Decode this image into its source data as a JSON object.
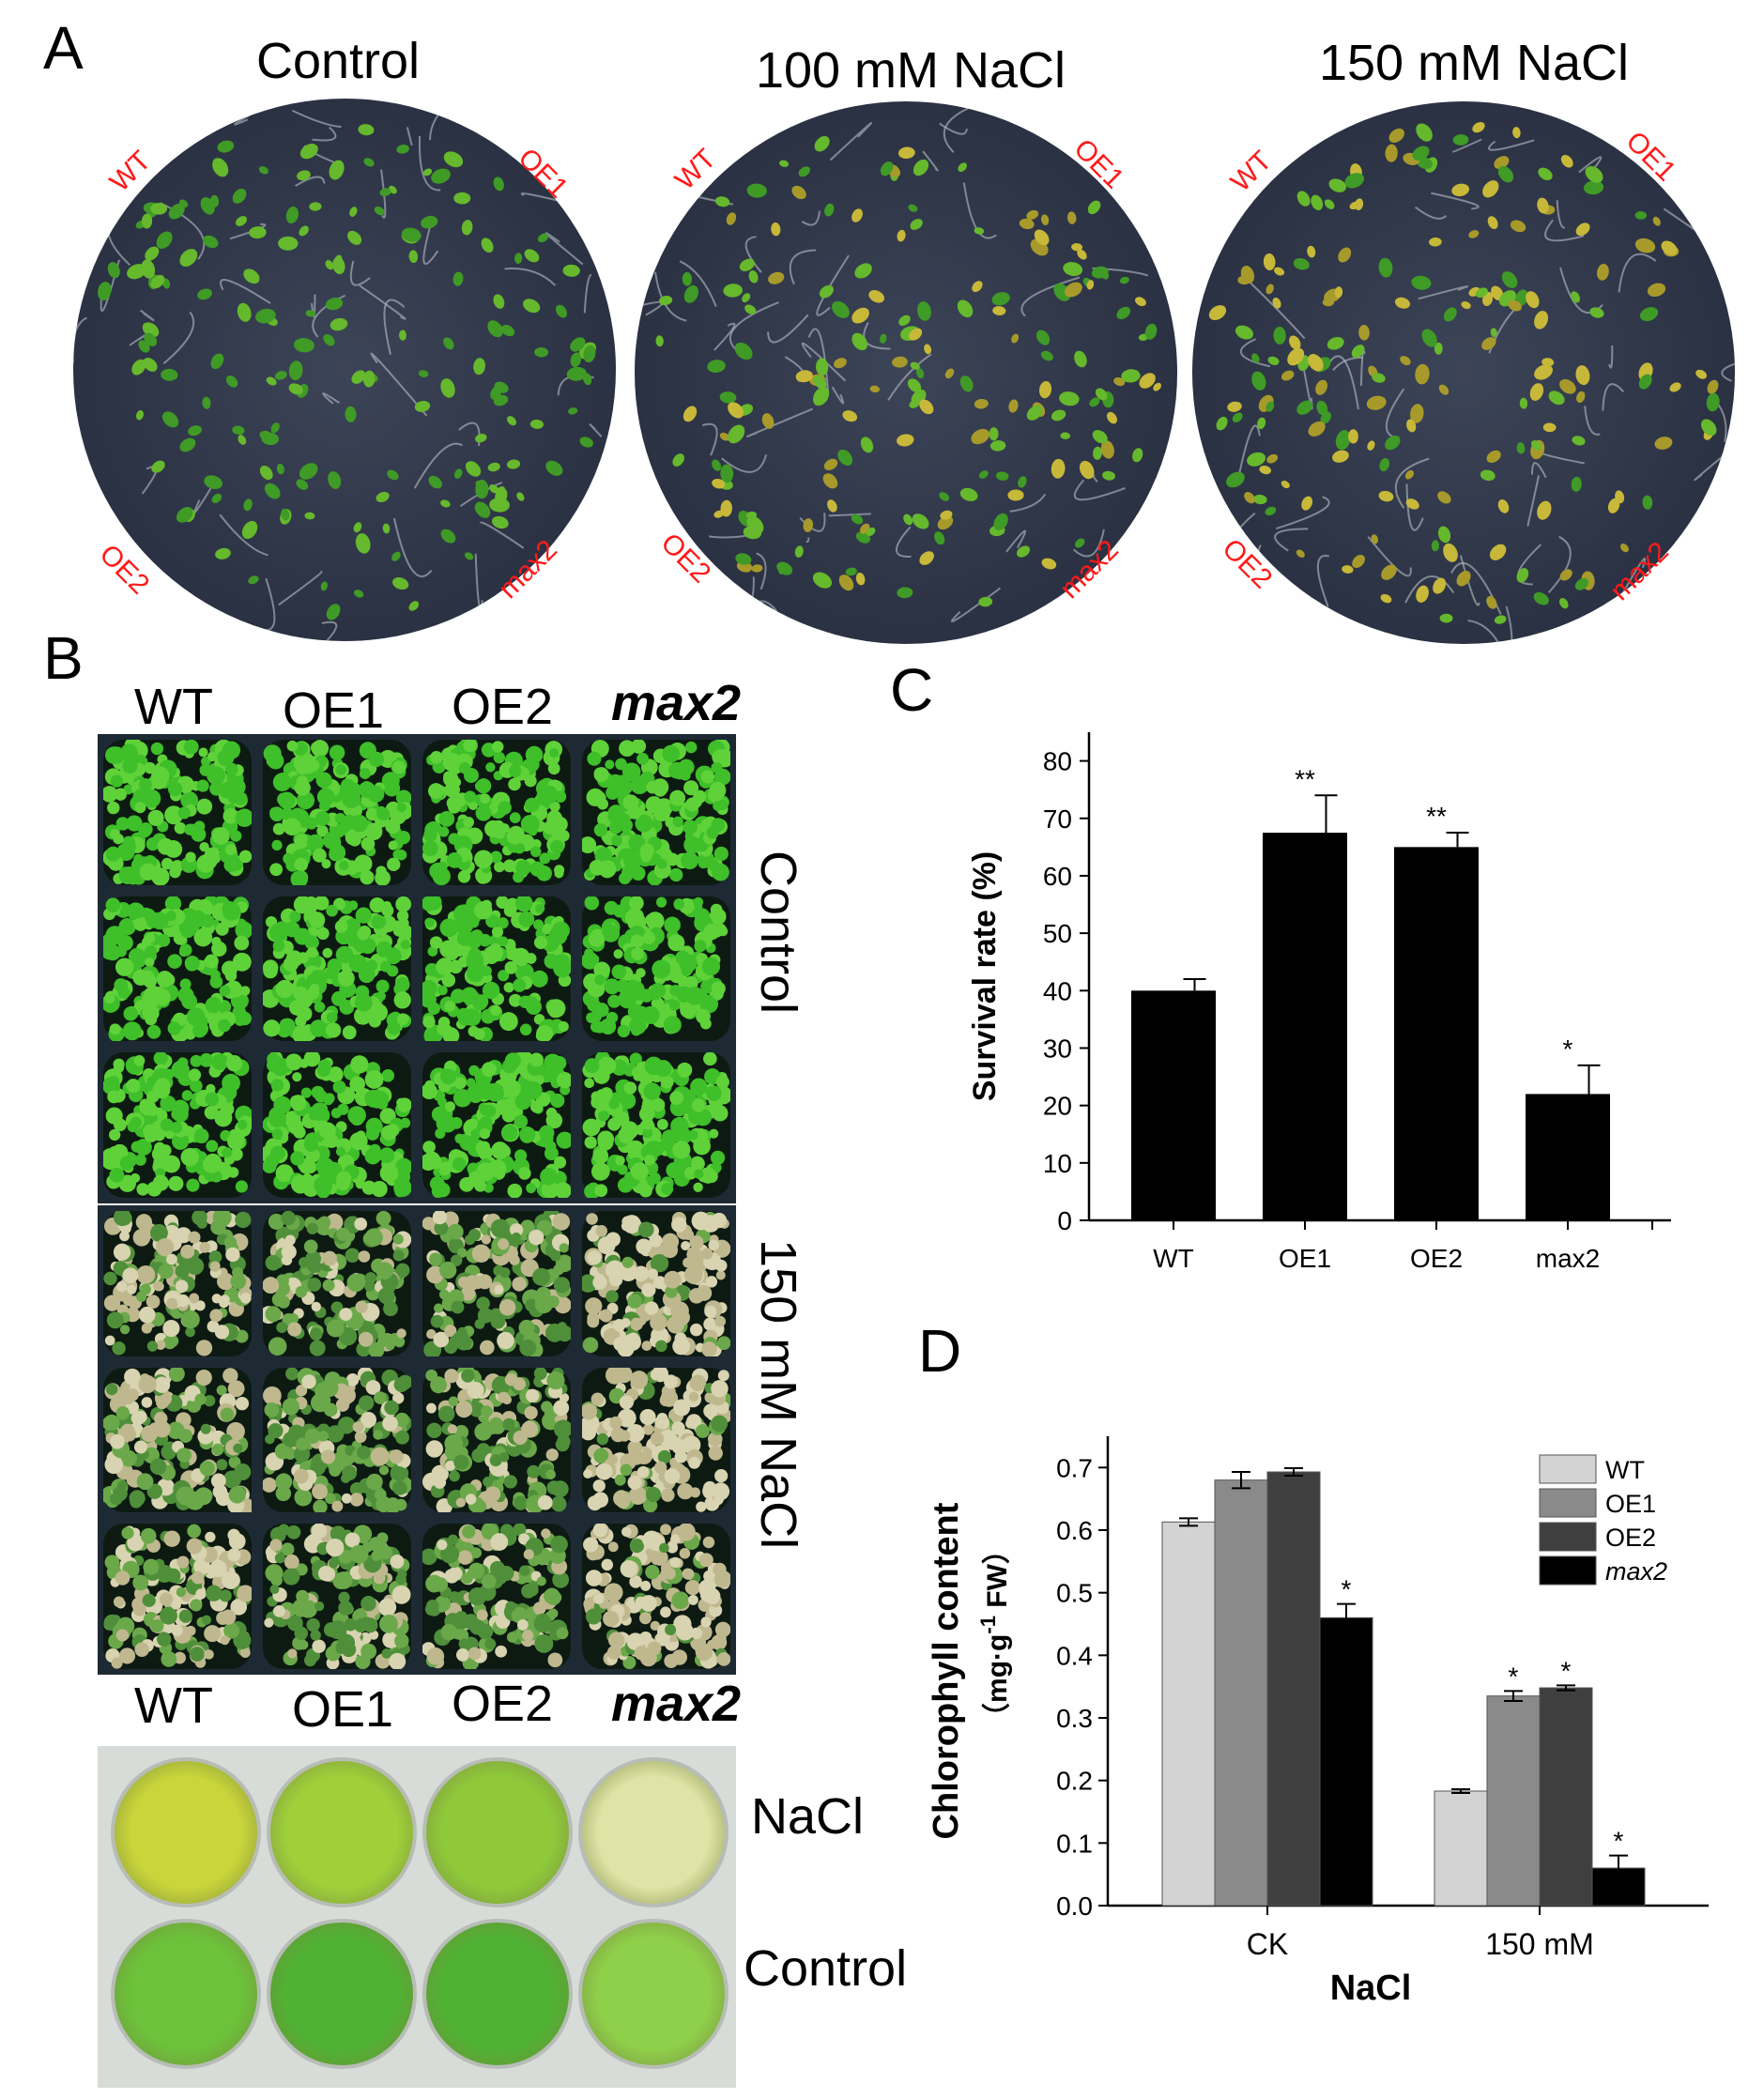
{
  "panels": {
    "a": {
      "letter": "A",
      "plates": [
        {
          "title": "Control",
          "labels": {
            "tl": "WT",
            "tr": "OE1",
            "bl": "OE2",
            "br": "max2"
          }
        },
        {
          "title": "100 mM NaCl",
          "labels": {
            "tl": "WT",
            "tr": "OE1",
            "bl": "OE2",
            "br": "max2"
          }
        },
        {
          "title": "150 mM NaCl",
          "labels": {
            "tl": "WT",
            "tr": "OE1",
            "bl": "OE2",
            "br": "max2"
          }
        }
      ]
    },
    "b": {
      "letter": "B",
      "genotypes": [
        "WT",
        "OE1",
        "OE2",
        "max2"
      ],
      "tray_labels": {
        "control": "Control",
        "salt": "150 mM NaCl"
      },
      "well_genotypes": [
        "WT",
        "OE1",
        "OE2",
        "max2"
      ],
      "well_labels": {
        "nacl": "NaCl",
        "control": "Control"
      }
    },
    "c": {
      "letter": "C"
    },
    "d": {
      "letter": "D"
    }
  },
  "colors": {
    "label_red": "#ff1a1a",
    "healthy_green": "#3fa52a",
    "bleached": "#c9c39a",
    "bar_black": "#000000",
    "wt_gray": "#d3d3d3",
    "oe1_gray": "#8a8a8a",
    "oe2_gray": "#3f3f3f"
  },
  "chart_data": [
    {
      "type": "bar",
      "categories": [
        "WT",
        "OE1",
        "OE2",
        "max2"
      ],
      "values": [
        40,
        67.5,
        65,
        22
      ],
      "errors": [
        2,
        6.5,
        2.5,
        5
      ],
      "significance": [
        "",
        "**",
        "**",
        "*"
      ],
      "ylabel": "Survival rate (%)",
      "ylim": [
        0,
        85
      ],
      "yticks": [
        0,
        10,
        20,
        30,
        40,
        50,
        60,
        70,
        80
      ],
      "grid": false
    },
    {
      "type": "bar",
      "categories": [
        "CK",
        "150 mM"
      ],
      "xlabel": "NaCl",
      "ylabel_line1": "Chlorophyll content",
      "ylabel_line2": "（mg·g",
      "ylabel_sup": "-1",
      "ylabel_tail": " FW）",
      "ylim": [
        0,
        0.75
      ],
      "yticks": [
        "0.0",
        "0.1",
        "0.2",
        "0.3",
        "0.4",
        "0.5",
        "0.6",
        "0.7"
      ],
      "legend_position": "top-right",
      "grid": false,
      "series": [
        {
          "name": "WT",
          "color": "#d3d3d3",
          "values": [
            0.613,
            0.183
          ],
          "errors": [
            0.006,
            0.003
          ],
          "significance": [
            "",
            ""
          ]
        },
        {
          "name": "OE1",
          "color": "#8a8a8a",
          "values": [
            0.68,
            0.335
          ],
          "errors": [
            0.013,
            0.008
          ],
          "significance": [
            "",
            "*"
          ]
        },
        {
          "name": "OE2",
          "color": "#3f3f3f",
          "values": [
            0.693,
            0.348
          ],
          "errors": [
            0.006,
            0.004
          ],
          "significance": [
            "",
            "*"
          ]
        },
        {
          "name": "max2",
          "color": "#000000",
          "values": [
            0.46,
            0.06
          ],
          "errors": [
            0.022,
            0.02
          ],
          "significance": [
            "*",
            "*"
          ]
        }
      ]
    }
  ]
}
